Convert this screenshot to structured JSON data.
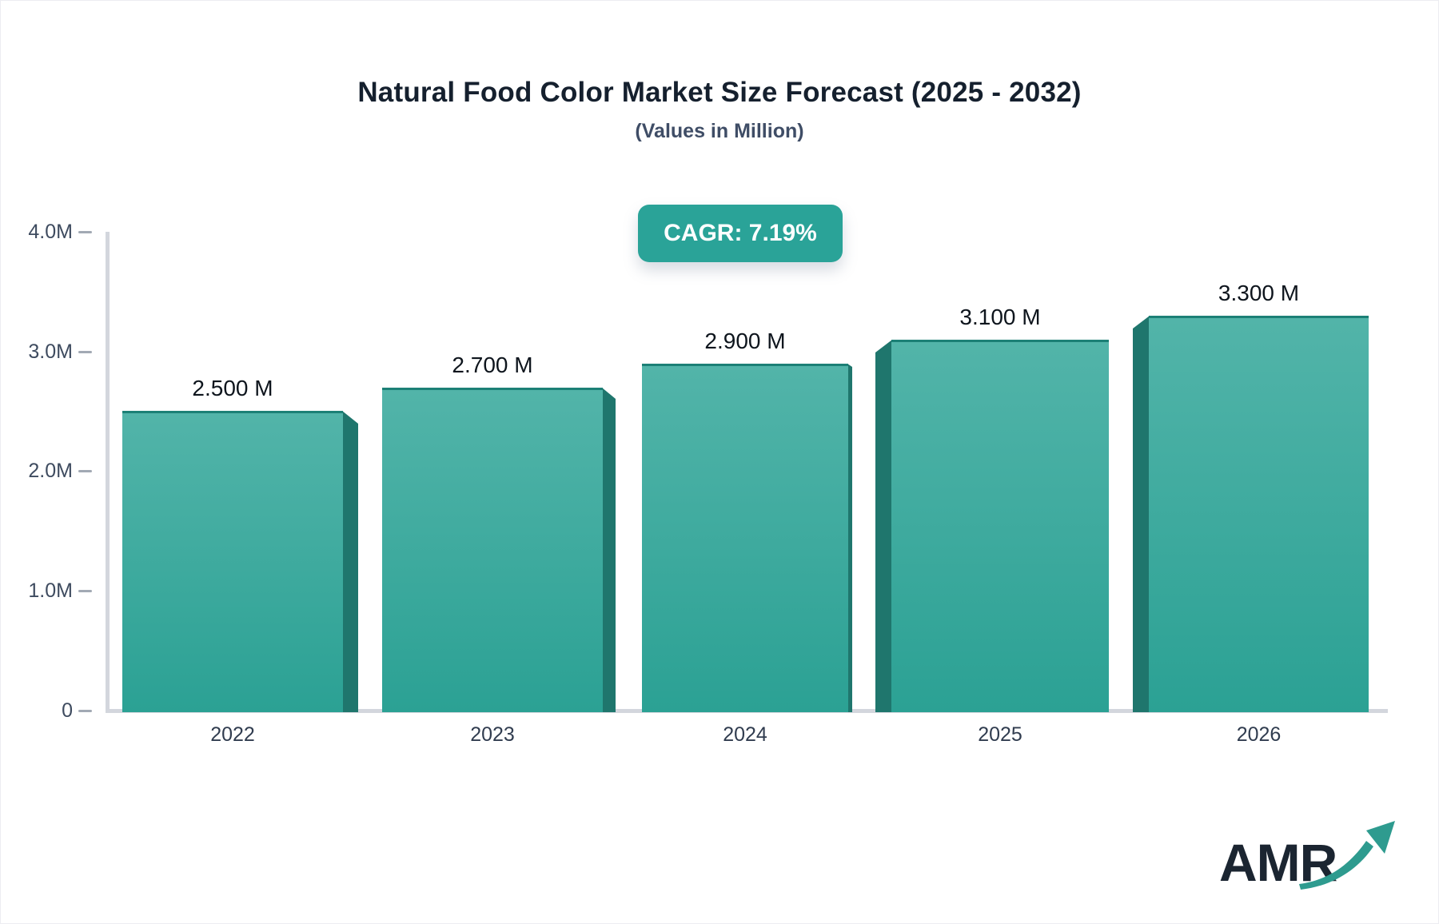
{
  "header": {
    "title": "Natural Food Color Market Size Forecast (2025 - 2032)",
    "subtitle": "(Values in Million)"
  },
  "badge": {
    "label": "CAGR: 7.19%",
    "bg_color": "#2aa398",
    "text_color": "#ffffff"
  },
  "chart_data": {
    "type": "bar",
    "title": "Natural Food Color Market Size Forecast (2025 - 2032)",
    "subtitle": "(Values in Million)",
    "annotation": "CAGR: 7.19%",
    "categories": [
      "2022",
      "2023",
      "2024",
      "2025",
      "2026"
    ],
    "values": [
      2.5,
      2.7,
      2.9,
      3.1,
      3.3
    ],
    "value_labels": [
      "2.500 M",
      "2.700 M",
      "2.900 M",
      "3.100 M",
      "3.300 M"
    ],
    "unit": "M",
    "xlabel": "",
    "ylabel": "",
    "ylim": [
      0,
      4.0
    ],
    "yticks": [
      0,
      1.0,
      2.0,
      3.0,
      4.0
    ],
    "ytick_labels": [
      "0",
      "1.0M",
      "2.0M",
      "3.0M",
      "4.0M"
    ],
    "grid": false,
    "legend": "none",
    "style": {
      "bar_gradient_top": "#52b4a9",
      "bar_gradient_bottom": "#2ba194",
      "bar_top_edge": "#1c8076",
      "bar_side_color": "#1f766d",
      "axis_line_color": "#d3d6dd",
      "tick_color": "#a2a9b4"
    }
  },
  "logo": {
    "text": "AMR",
    "arrow_color": "#2e9b8f",
    "text_color": "#1b2531"
  }
}
